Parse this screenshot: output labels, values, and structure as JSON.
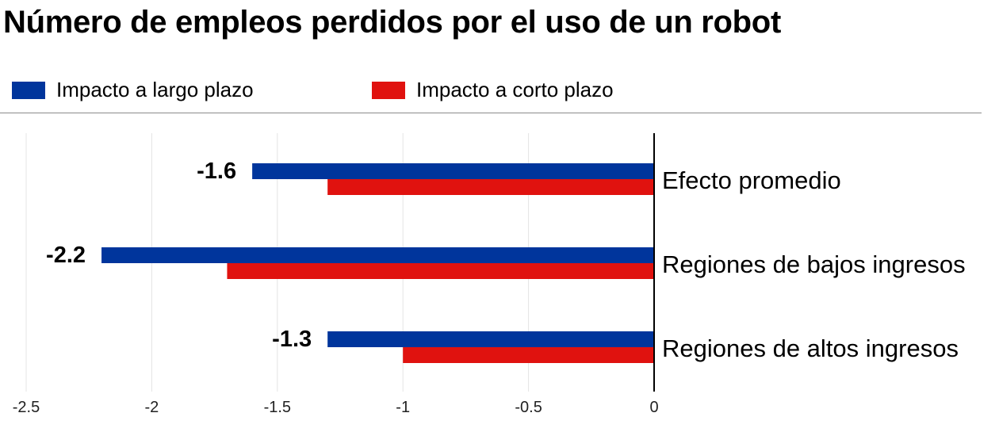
{
  "chart_data": {
    "type": "bar",
    "orientation": "horizontal",
    "title": "Número de empleos perdidos por el uso de un robot",
    "categories": [
      "Efecto promedio",
      "Regiones de bajos ingresos",
      "Regiones de altos ingresos"
    ],
    "series": [
      {
        "name": "Impacto a largo plazo",
        "color": "#00359c",
        "values": [
          -1.6,
          -2.2,
          -1.3
        ]
      },
      {
        "name": "Impacto a corto plazo",
        "color": "#e0120f",
        "values": [
          -1.3,
          -1.7,
          -1.0
        ]
      }
    ],
    "data_labels": [
      "-1.6",
      "-2.2",
      "-1.3"
    ],
    "xlim": [
      -2.5,
      0
    ],
    "x_ticks": [
      -2.5,
      -2,
      -1.5,
      -1,
      -0.5,
      0
    ],
    "x_tick_labels": [
      "-2.5",
      "-2",
      "-1.5",
      "-1",
      "-0.5",
      "0"
    ],
    "grid": true,
    "legend_position": "top-left"
  }
}
